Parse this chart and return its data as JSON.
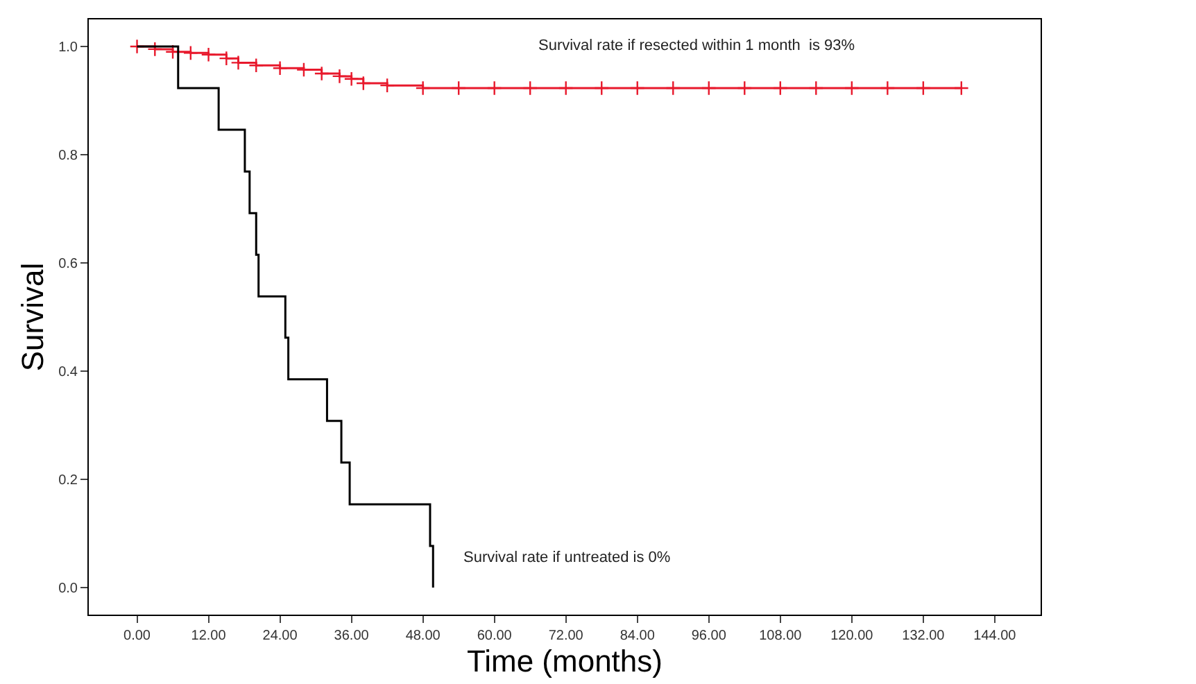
{
  "chart_data": {
    "type": "step",
    "xlabel": "Time (months)",
    "ylabel": "Survival",
    "series": [
      {
        "color": "#e8192c",
        "marker": "cross",
        "x": [
          0,
          3,
          6,
          9,
          12,
          15,
          17,
          20,
          24,
          28,
          31,
          34,
          36,
          38,
          42,
          48,
          54,
          60,
          66,
          72,
          78,
          84,
          90,
          96,
          102,
          108,
          114,
          120,
          126,
          132,
          138.4
        ],
        "values": [
          1.0,
          0.995,
          0.99,
          0.988,
          0.985,
          0.978,
          0.97,
          0.965,
          0.96,
          0.957,
          0.95,
          0.945,
          0.94,
          0.932,
          0.928,
          0.923,
          0.923,
          0.923,
          0.923,
          0.923,
          0.923,
          0.923,
          0.923,
          0.923,
          0.923,
          0.923,
          0.923,
          0.923,
          0.923,
          0.923,
          0.923
        ]
      },
      {
        "color": "#000000",
        "marker": "none",
        "x": [
          0,
          6.9,
          13.7,
          18.1,
          18.9,
          20.0,
          20.4,
          24.9,
          25.4,
          31.9,
          34.3,
          35.7,
          49.2,
          49.7
        ],
        "values": [
          1.0,
          0.923,
          0.846,
          0.769,
          0.692,
          0.615,
          0.538,
          0.462,
          0.385,
          0.308,
          0.231,
          0.154,
          0.077,
          0.0
        ]
      }
    ],
    "annotations": [
      "Survival rate if resected within 1 month  is 93%",
      "Survival rate if untreated is 0%"
    ],
    "xlim": [
      -8.1,
      151.7
    ],
    "ylim": [
      -0.05,
      1.05
    ],
    "xticks": [
      {
        "value": 0,
        "label": "0.00"
      },
      {
        "value": 12,
        "label": "12.00"
      },
      {
        "value": 24,
        "label": "24.00"
      },
      {
        "value": 36,
        "label": "36.00"
      },
      {
        "value": 48,
        "label": "48.00"
      },
      {
        "value": 60,
        "label": "60.00"
      },
      {
        "value": 72,
        "label": "72.00"
      },
      {
        "value": 84,
        "label": "84.00"
      },
      {
        "value": 96,
        "label": "96.00"
      },
      {
        "value": 108,
        "label": "108.00"
      },
      {
        "value": 120,
        "label": "120.00"
      },
      {
        "value": 132,
        "label": "132.00"
      },
      {
        "value": 144,
        "label": "144.00"
      }
    ],
    "yticks": [
      {
        "value": 0,
        "label": "0.0"
      },
      {
        "value": 0.2,
        "label": "0.2"
      },
      {
        "value": 0.4,
        "label": "0.4"
      },
      {
        "value": 0.6,
        "label": "0.6"
      },
      {
        "value": 0.8,
        "label": "0.8"
      },
      {
        "value": 1.0,
        "label": "1.0"
      }
    ]
  }
}
